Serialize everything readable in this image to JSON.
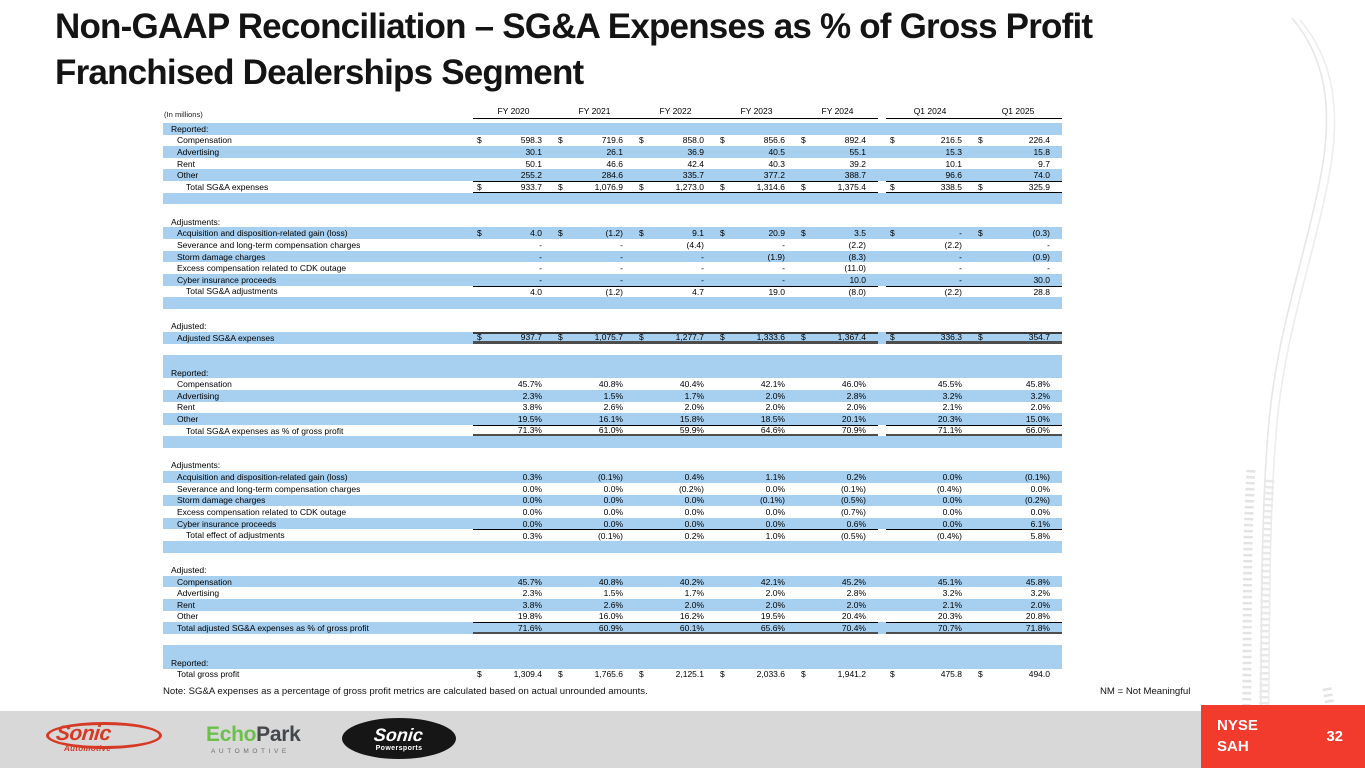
{
  "slide": {
    "title_line1": "Non-GAAP Reconciliation – SG&A Expenses as % of Gross Profit",
    "title_line2": "Franchised Dealerships Segment",
    "page_number": "32"
  },
  "table": {
    "units_label": "(In millions)",
    "columns": [
      "FY 2020",
      "FY 2021",
      "FY 2022",
      "FY 2023",
      "FY 2024",
      "Q1 2024",
      "Q1 2025"
    ],
    "rows": [
      {
        "t": "sec",
        "label": "Reported:",
        "bg": "b"
      },
      {
        "t": "d",
        "label": "Compensation",
        "bg": "w",
        "dollar": true,
        "v": [
          "598.3",
          "719.6",
          "858.0",
          "856.6",
          "892.4",
          "216.5",
          "226.4"
        ]
      },
      {
        "t": "d",
        "label": "Advertising",
        "bg": "b",
        "v": [
          "30.1",
          "26.1",
          "36.9",
          "40.5",
          "55.1",
          "15.3",
          "15.8"
        ]
      },
      {
        "t": "d",
        "label": "Rent",
        "bg": "w",
        "v": [
          "50.1",
          "46.6",
          "42.4",
          "40.3",
          "39.2",
          "10.1",
          "9.7"
        ]
      },
      {
        "t": "d",
        "label": "Other",
        "bg": "b",
        "v": [
          "255.2",
          "284.6",
          "335.7",
          "377.2",
          "388.7",
          "96.6",
          "74.0"
        ]
      },
      {
        "t": "d",
        "label": "Total SG&A expenses",
        "bg": "w",
        "dollar": true,
        "ind": 2,
        "style": "total",
        "v": [
          "933.7",
          "1,076.9",
          "1,273.0",
          "1,314.6",
          "1,375.4",
          "338.5",
          "325.9"
        ]
      },
      {
        "t": "b",
        "bg": "b"
      },
      {
        "t": "b",
        "bg": "w"
      },
      {
        "t": "sec",
        "label": "Adjustments:",
        "bg": "w"
      },
      {
        "t": "d",
        "label": "Acquisition and disposition-related gain (loss)",
        "bg": "b",
        "dollar": true,
        "v": [
          "4.0",
          "(1.2)",
          "9.1",
          "20.9",
          "3.5",
          "-",
          "(0.3)"
        ]
      },
      {
        "t": "d",
        "label": "Severance and long-term compensation charges",
        "bg": "w",
        "v": [
          "-",
          "-",
          "(4.4)",
          "-",
          "(2.2)",
          "(2.2)",
          "-"
        ]
      },
      {
        "t": "d",
        "label": "Storm damage charges",
        "bg": "b",
        "v": [
          "-",
          "-",
          "-",
          "(1.9)",
          "(8.3)",
          "-",
          "(0.9)"
        ]
      },
      {
        "t": "d",
        "label": "Excess compensation related to CDK outage",
        "bg": "w",
        "v": [
          "-",
          "-",
          "-",
          "-",
          "(11.0)",
          "-",
          "-"
        ]
      },
      {
        "t": "d",
        "label": "Cyber insurance proceeds",
        "bg": "b",
        "v": [
          "-",
          "-",
          "-",
          "-",
          "10.0",
          "-",
          "30.0"
        ]
      },
      {
        "t": "d",
        "label": "Total SG&A adjustments",
        "bg": "w",
        "ind": 2,
        "style": "rt",
        "v": [
          "4.0",
          "(1.2)",
          "4.7",
          "19.0",
          "(8.0)",
          "(2.2)",
          "28.8"
        ]
      },
      {
        "t": "b",
        "bg": "b"
      },
      {
        "t": "b",
        "bg": "w"
      },
      {
        "t": "sec",
        "label": "Adjusted:",
        "bg": "w"
      },
      {
        "t": "d",
        "label": "Adjusted SG&A expenses",
        "bg": "b",
        "dollar": true,
        "style": "emph",
        "v": [
          "937.7",
          "1,075.7",
          "1,277.7",
          "1,333.6",
          "1,367.4",
          "336.3",
          "354.7"
        ]
      },
      {
        "t": "b",
        "bg": "w"
      },
      {
        "t": "b",
        "bg": "b"
      },
      {
        "t": "sec",
        "label": "Reported:",
        "bg": "b"
      },
      {
        "t": "d",
        "label": "Compensation",
        "bg": "w",
        "v": [
          "45.7%",
          "40.8%",
          "40.4%",
          "42.1%",
          "46.0%",
          "45.5%",
          "45.8%"
        ]
      },
      {
        "t": "d",
        "label": "Advertising",
        "bg": "b",
        "v": [
          "2.3%",
          "1.5%",
          "1.7%",
          "2.0%",
          "2.8%",
          "3.2%",
          "3.2%"
        ]
      },
      {
        "t": "d",
        "label": "Rent",
        "bg": "w",
        "v": [
          "3.8%",
          "2.6%",
          "2.0%",
          "2.0%",
          "2.0%",
          "2.1%",
          "2.0%"
        ]
      },
      {
        "t": "d",
        "label": "Other",
        "bg": "b",
        "v": [
          "19.5%",
          "16.1%",
          "15.8%",
          "18.5%",
          "20.1%",
          "20.3%",
          "15.0%"
        ]
      },
      {
        "t": "d",
        "label": "Total SG&A expenses as % of gross profit",
        "bg": "w",
        "ind": 2,
        "style": "emph2",
        "v": [
          "71.3%",
          "61.0%",
          "59.9%",
          "64.6%",
          "70.9%",
          "71.1%",
          "66.0%"
        ]
      },
      {
        "t": "b",
        "bg": "b"
      },
      {
        "t": "b",
        "bg": "w"
      },
      {
        "t": "sec",
        "label": "Adjustments:",
        "bg": "w"
      },
      {
        "t": "d",
        "label": "Acquisition and disposition-related gain (loss)",
        "bg": "b",
        "v": [
          "0.3%",
          "(0.1%)",
          "0.4%",
          "1.1%",
          "0.2%",
          "0.0%",
          "(0.1%)"
        ]
      },
      {
        "t": "d",
        "label": "Severance and long-term compensation charges",
        "bg": "w",
        "v": [
          "0.0%",
          "0.0%",
          "(0.2%)",
          "0.0%",
          "(0.1%)",
          "(0.4%)",
          "0.0%"
        ]
      },
      {
        "t": "d",
        "label": "Storm damage charges",
        "bg": "b",
        "v": [
          "0.0%",
          "0.0%",
          "0.0%",
          "(0.1%)",
          "(0.5%)",
          "0.0%",
          "(0.2%)"
        ]
      },
      {
        "t": "d",
        "label": "Excess compensation related to CDK outage",
        "bg": "w",
        "v": [
          "0.0%",
          "0.0%",
          "0.0%",
          "0.0%",
          "(0.7%)",
          "0.0%",
          "0.0%"
        ]
      },
      {
        "t": "d",
        "label": "Cyber insurance proceeds",
        "bg": "b",
        "v": [
          "0.0%",
          "0.0%",
          "0.0%",
          "0.0%",
          "0.6%",
          "0.0%",
          "6.1%"
        ]
      },
      {
        "t": "d",
        "label": "Total effect of adjustments",
        "bg": "w",
        "ind": 2,
        "style": "rt",
        "v": [
          "0.3%",
          "(0.1%)",
          "0.2%",
          "1.0%",
          "(0.5%)",
          "(0.4%)",
          "5.8%"
        ]
      },
      {
        "t": "b",
        "bg": "b"
      },
      {
        "t": "b",
        "bg": "w"
      },
      {
        "t": "sec",
        "label": "Adjusted:",
        "bg": "w"
      },
      {
        "t": "d",
        "label": "Compensation",
        "bg": "b",
        "v": [
          "45.7%",
          "40.8%",
          "40.2%",
          "42.1%",
          "45.2%",
          "45.1%",
          "45.8%"
        ]
      },
      {
        "t": "d",
        "label": "Advertising",
        "bg": "w",
        "v": [
          "2.3%",
          "1.5%",
          "1.7%",
          "2.0%",
          "2.8%",
          "3.2%",
          "3.2%"
        ]
      },
      {
        "t": "d",
        "label": "Rent",
        "bg": "b",
        "v": [
          "3.8%",
          "2.6%",
          "2.0%",
          "2.0%",
          "2.0%",
          "2.1%",
          "2.0%"
        ]
      },
      {
        "t": "d",
        "label": "Other",
        "bg": "w",
        "v": [
          "19.8%",
          "16.0%",
          "16.2%",
          "19.5%",
          "20.4%",
          "20.3%",
          "20.8%"
        ]
      },
      {
        "t": "d",
        "label": "Total adjusted SG&A expenses as % of gross profit",
        "bg": "b",
        "style": "emph2",
        "v": [
          "71.6%",
          "60.9%",
          "60.1%",
          "65.6%",
          "70.4%",
          "70.7%",
          "71.8%"
        ]
      },
      {
        "t": "b",
        "bg": "w"
      },
      {
        "t": "b",
        "bg": "b"
      },
      {
        "t": "sec",
        "label": "Reported:",
        "bg": "b"
      },
      {
        "t": "d",
        "label": "Total gross profit",
        "bg": "w",
        "dollar": true,
        "v": [
          "1,309.4",
          "1,765.6",
          "2,125.1",
          "2,033.6",
          "1,941.2",
          "475.8",
          "494.0"
        ]
      }
    ]
  },
  "footnote": {
    "note_text": "Note: SG&A expenses as a percentage of gross profit metrics are calculated based on actual unrounded amounts.",
    "nm_text": "NM = Not Meaningful"
  },
  "footer": {
    "ticker_line1": "NYSE",
    "ticker_line2": "SAH",
    "logos": {
      "sonic_automotive": {
        "word": "Sonic",
        "sub": "Automotive"
      },
      "echopark": {
        "word_1": "Echo",
        "word_2": "Park",
        "sub": "AUTOMOTIVE"
      },
      "sonic_powersports": {
        "word": "Sonic",
        "sub": "Powersports"
      }
    }
  },
  "colors": {
    "row_blue": "#a6cff0",
    "accent_red": "#f23b2d",
    "sonic_red": "#d63a26",
    "echopark_green": "#6cbf4a",
    "logo_dark": "#43484c",
    "footer_gray": "#d8d8d8"
  }
}
